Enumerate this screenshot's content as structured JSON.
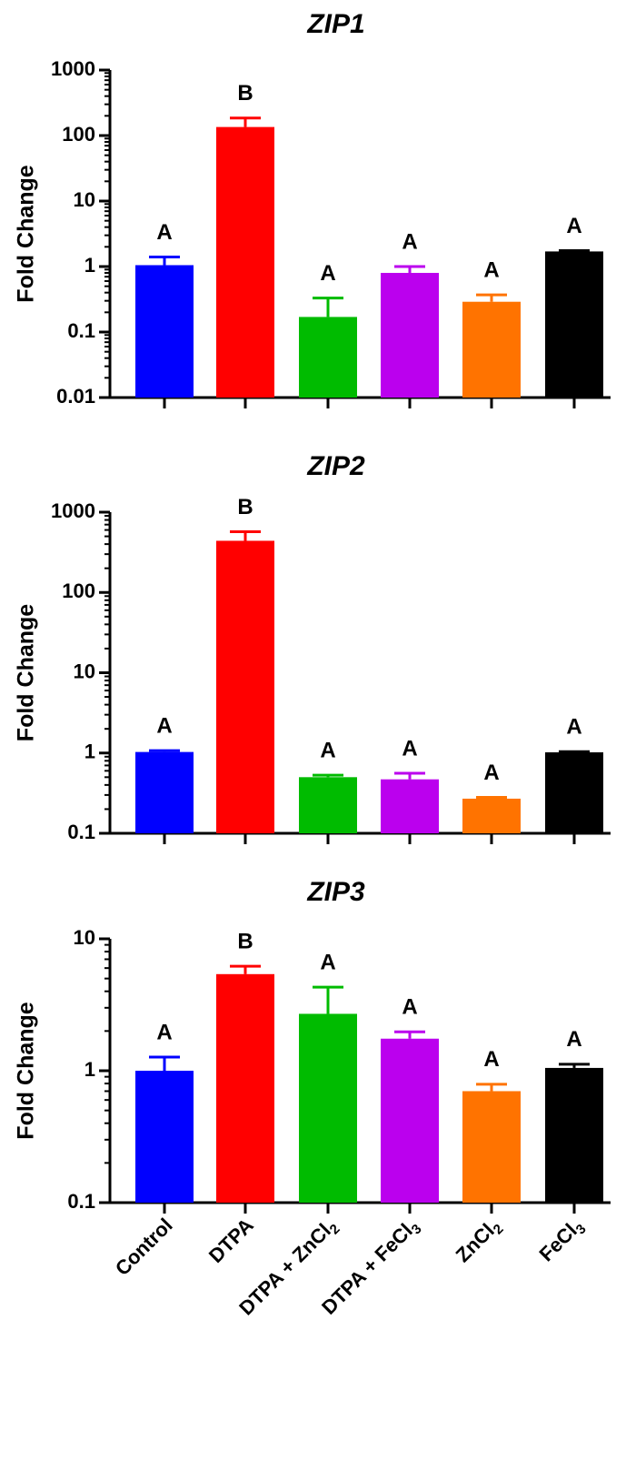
{
  "chart_data": [
    {
      "type": "bar",
      "scale": "log",
      "title": "ZIP1",
      "ylabel": "Fold Change",
      "ylim": [
        0.01,
        1000
      ],
      "yticks": [
        "0.01",
        "0.1",
        "1",
        "10",
        "100",
        "1000"
      ],
      "categories": [
        "Control",
        "DTPA",
        "DTPA + ZnCl2",
        "DTPA + FeCl3",
        "ZnCl2",
        "FeCl3"
      ],
      "values": [
        1.05,
        135,
        0.17,
        0.8,
        0.29,
        1.7
      ],
      "errors_upper": [
        1.4,
        185,
        0.33,
        1.0,
        0.37,
        1.75
      ],
      "significance": [
        "A",
        "B",
        "A",
        "A",
        "A",
        "A"
      ]
    },
    {
      "type": "bar",
      "scale": "log",
      "title": "ZIP2",
      "ylabel": "Fold Change",
      "ylim": [
        0.1,
        1000
      ],
      "yticks": [
        "0.1",
        "1",
        "10",
        "100",
        "1000"
      ],
      "categories": [
        "Control",
        "DTPA",
        "DTPA + ZnCl2",
        "DTPA + FeCl3",
        "ZnCl2",
        "FeCl3"
      ],
      "values": [
        1.03,
        440,
        0.5,
        0.47,
        0.27,
        1.02
      ],
      "errors_upper": [
        1.07,
        570,
        0.53,
        0.56,
        0.28,
        1.04
      ],
      "significance": [
        "A",
        "B",
        "A",
        "A",
        "A",
        "A"
      ]
    },
    {
      "type": "bar",
      "scale": "log",
      "title": "ZIP3",
      "ylabel": "Fold Change",
      "ylim": [
        0.1,
        10
      ],
      "yticks": [
        "0.1",
        "1",
        "10"
      ],
      "categories": [
        "Control",
        "DTPA",
        "DTPA + ZnCl2",
        "DTPA + FeCl3",
        "ZnCl2",
        "FeCl3"
      ],
      "values": [
        1.0,
        5.4,
        2.7,
        1.75,
        0.7,
        1.05
      ],
      "errors_upper": [
        1.27,
        6.2,
        4.3,
        1.97,
        0.79,
        1.12
      ],
      "significance": [
        "A",
        "B",
        "A",
        "A",
        "A",
        "A"
      ]
    }
  ],
  "x_axis_labels": [
    {
      "main": "Control",
      "sub": ""
    },
    {
      "main": "DTPA",
      "sub": ""
    },
    {
      "main": "DTPA + ZnCl",
      "sub": "2"
    },
    {
      "main": "DTPA + FeCl",
      "sub": "3"
    },
    {
      "main": "ZnCl",
      "sub": "2"
    },
    {
      "main": "FeCl",
      "sub": "3"
    }
  ],
  "colors": [
    "#0000ff",
    "#ff0000",
    "#00bb00",
    "#bb00ee",
    "#ff7300",
    "#000000"
  ]
}
